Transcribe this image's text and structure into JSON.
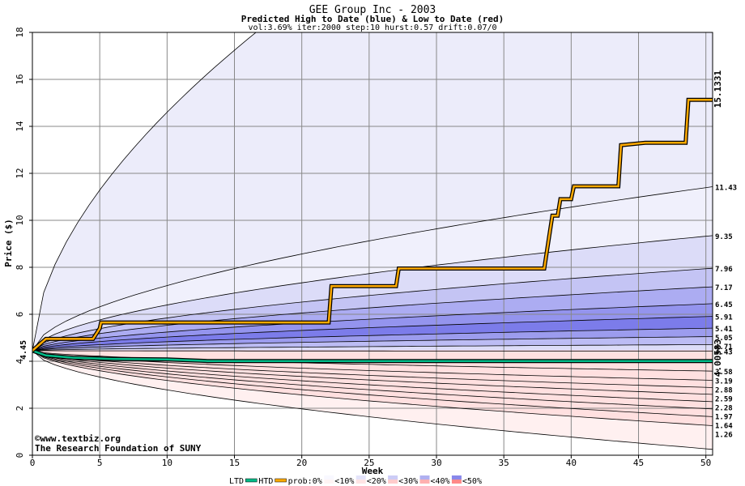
{
  "chart_data": {
    "type": "area",
    "title": "GEE Group Inc - 2003",
    "subtitle": "Predicted High to Date (blue) &  Low to Date (red)",
    "params": "vol:3.69% iter:2000 step:10 hurst:0.57 drift:0.07/0",
    "xlabel": "Week",
    "ylabel": "Price ($)",
    "xlim": [
      0,
      50.5
    ],
    "ylim": [
      0,
      18
    ],
    "x_ticks": [
      0,
      5,
      10,
      15,
      20,
      25,
      30,
      35,
      40,
      45,
      50
    ],
    "y_ticks": [
      0,
      2,
      4,
      6,
      8,
      10,
      12,
      14,
      16,
      18
    ],
    "start_price": 4.45,
    "start_label": "4.45",
    "watermark": [
      "©www.textbiz.org",
      "The Research Foundation of SUNY"
    ],
    "blue_color": "#1f1fb4",
    "red_color": "#ff3030",
    "high_quantiles": [
      {
        "end": 11.43,
        "label": "11.43",
        "fill": "#f0f0fc"
      },
      {
        "end": 9.35,
        "label": "9.35",
        "fill": "#dcdcf8"
      },
      {
        "end": 7.96,
        "label": "7.96",
        "fill": "#c4c4f4"
      },
      {
        "end": 7.17,
        "label": "7.17",
        "fill": "#acacf2"
      },
      {
        "end": 6.45,
        "label": "6.45",
        "fill": "#9494ee"
      },
      {
        "end": 5.91,
        "label": "5.91",
        "fill": "#7c7cea"
      },
      {
        "end": 5.41,
        "label": "5.41",
        "fill": "#9c9cee"
      },
      {
        "end": 5.05,
        "label": "5.05",
        "fill": "#bcbcf4"
      },
      {
        "end": 4.71,
        "label": "4.71",
        "fill": "#dcdcf8"
      }
    ],
    "high_outer": {
      "end": 30.0,
      "fill": "#ececfa"
    },
    "low_quantiles": [
      {
        "end": 4.43,
        "label": "4.43",
        "fill": "#ffffff"
      },
      {
        "end": 3.58,
        "label": "3.58",
        "fill": "#ffe4e4"
      },
      {
        "end": 3.19,
        "label": "3.19",
        "fill": "#ffd2d2"
      },
      {
        "end": 2.88,
        "label": "2.88",
        "fill": "#ffbcbc"
      },
      {
        "end": 2.59,
        "label": "2.59",
        "fill": "#ffa4a4"
      },
      {
        "end": 2.28,
        "label": "2.28",
        "fill": "#ff8c8c"
      },
      {
        "end": 1.97,
        "label": "1.97",
        "fill": "#ffa8a8"
      },
      {
        "end": 1.64,
        "label": "1.64",
        "fill": "#ffc4c4"
      },
      {
        "end": 1.26,
        "label": "1.26",
        "fill": "#ffe0e0"
      }
    ],
    "low_outer": {
      "end": 0.25,
      "fill": "#fff0f0"
    },
    "htd_series": {
      "name": "HTD",
      "end_label": "15.1331",
      "color": "#ffaa00",
      "x": [
        0,
        1,
        4.5,
        5,
        5.1,
        22,
        22.2,
        27,
        27.2,
        38,
        38.6,
        39,
        39.2,
        40,
        40.2,
        43.5,
        43.7,
        45.5,
        48.5,
        48.7,
        50.5
      ],
      "y": [
        4.45,
        4.95,
        4.95,
        5.4,
        5.65,
        5.65,
        7.2,
        7.2,
        7.95,
        7.95,
        10.2,
        10.2,
        10.9,
        10.9,
        11.45,
        11.45,
        13.2,
        13.3,
        13.3,
        15.13,
        15.13
      ]
    },
    "ltd_series": {
      "name": "LTD",
      "end_label": "4.00583",
      "color": "#00bb88",
      "x": [
        0,
        1,
        3,
        6,
        10,
        13,
        50.5
      ],
      "y": [
        4.45,
        4.25,
        4.15,
        4.1,
        4.08,
        4.01,
        4.006
      ]
    },
    "legend": {
      "items": [
        "LTD",
        "HTD",
        "prob:0%",
        "<10%",
        "<20%",
        "<30%",
        "<40%",
        "<50%"
      ],
      "swatches": [
        {
          "top": "#f8f8ff",
          "bottom": "#fff4f4"
        },
        {
          "top": "#e4e4fa",
          "bottom": "#ffe4e4"
        },
        {
          "top": "#ccccf6",
          "bottom": "#ffcccc"
        },
        {
          "top": "#b0b0f0",
          "bottom": "#ffb0b0"
        },
        {
          "top": "#8888ea",
          "bottom": "#ff8888"
        }
      ]
    }
  }
}
